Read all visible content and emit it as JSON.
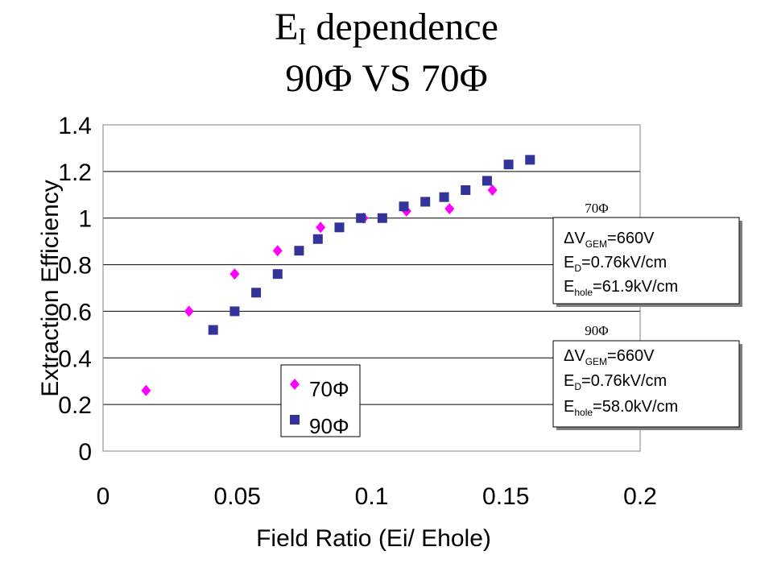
{
  "title": {
    "line1_main": "E",
    "line1_sub": "I",
    "line1_rest": " dependence",
    "line2": "90Φ VS 70Φ"
  },
  "chart_data": {
    "type": "scatter",
    "xlabel": "Field Ratio (Ei/ Ehole)",
    "ylabel": "Extraction Efficiency",
    "xlim": [
      0,
      0.2
    ],
    "ylim": [
      0,
      1.4
    ],
    "x_ticks": [
      "0",
      "0.05",
      "0.1",
      "0.15",
      "0.2"
    ],
    "y_ticks": [
      "0",
      "0.2",
      "0.4",
      "0.6",
      "0.8",
      "1",
      "1.2",
      "1.4"
    ],
    "grid": "horizontal",
    "legend_position": "inside-bottom-center",
    "series": [
      {
        "name": "70Φ",
        "marker": "diamond",
        "color": "#ff00ff",
        "points": [
          [
            0.016,
            0.26
          ],
          [
            0.032,
            0.6
          ],
          [
            0.049,
            0.76
          ],
          [
            0.065,
            0.86
          ],
          [
            0.081,
            0.96
          ],
          [
            0.097,
            1.0
          ],
          [
            0.113,
            1.03
          ],
          [
            0.129,
            1.04
          ],
          [
            0.145,
            1.12
          ]
        ]
      },
      {
        "name": "90Φ",
        "marker": "square",
        "color": "#333399",
        "points": [
          [
            0.041,
            0.52
          ],
          [
            0.049,
            0.6
          ],
          [
            0.057,
            0.68
          ],
          [
            0.065,
            0.76
          ],
          [
            0.073,
            0.86
          ],
          [
            0.08,
            0.91
          ],
          [
            0.088,
            0.96
          ],
          [
            0.096,
            1.0
          ],
          [
            0.104,
            1.0
          ],
          [
            0.112,
            1.05
          ],
          [
            0.12,
            1.07
          ],
          [
            0.127,
            1.09
          ],
          [
            0.135,
            1.12
          ],
          [
            0.143,
            1.16
          ],
          [
            0.151,
            1.23
          ],
          [
            0.159,
            1.25
          ]
        ]
      }
    ],
    "annotations": [
      {
        "label": "70Φ",
        "line1_pre": "ΔV",
        "line1_sub": "GEM",
        "line1_post": "=660V",
        "line2_pre": "E",
        "line2_sub": "D",
        "line2_post": "=0.76kV/cm",
        "line3_pre": "E",
        "line3_sub": "hole",
        "line3_post": "=61.9kV/cm"
      },
      {
        "label": "90Φ",
        "line1_pre": "ΔV",
        "line1_sub": "GEM",
        "line1_post": "=660V",
        "line2_pre": "E",
        "line2_sub": "D",
        "line2_post": "=0.76kV/cm",
        "line3_pre": "E",
        "line3_sub": "hole",
        "line3_post": "=58.0kV/cm"
      }
    ]
  }
}
